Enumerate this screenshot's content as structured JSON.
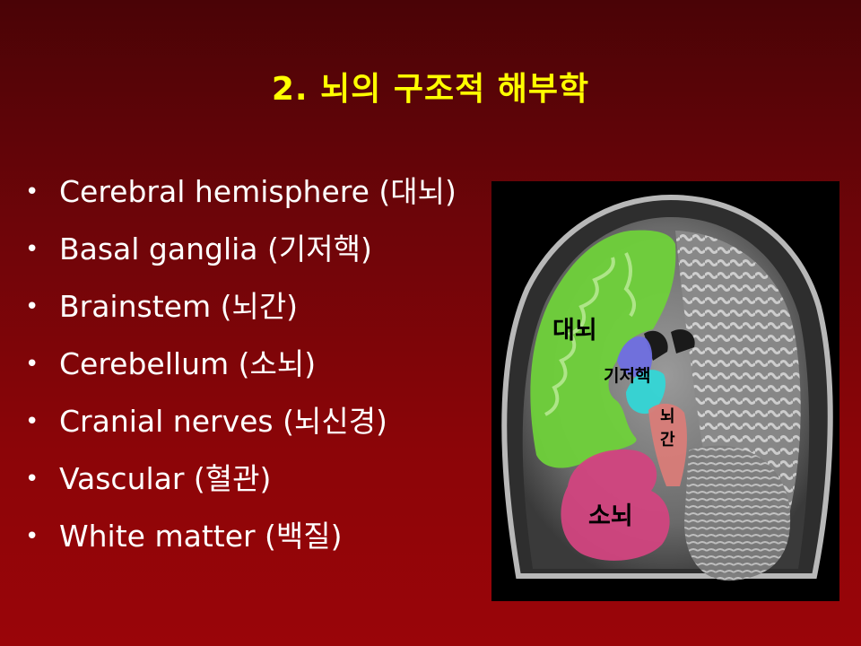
{
  "slide": {
    "title": "2. 뇌의 구조적 해부학",
    "bullets": [
      "Cerebral hemisphere (대뇌)",
      "Basal ganglia (기저핵)",
      "Brainstem (뇌간)",
      "Cerebellum (소뇌)",
      "Cranial nerves (뇌신경)",
      "Vascular (혈관)",
      "White matter (백질)"
    ],
    "bullet_symbol": "•"
  },
  "brain_image": {
    "labels": {
      "cerebrum": "대뇌",
      "basal_ganglia": "기저핵",
      "brainstem_line1": "뇌",
      "brainstem_line2": "간",
      "cerebellum": "소뇌"
    },
    "colors": {
      "cerebrum": "#6fd13a",
      "basal_ganglia_upper": "#6f6fe0",
      "basal_ganglia_lower": "#33d6d6",
      "brainstem": "#d97c78",
      "cerebellum": "#d2457f"
    }
  },
  "colors": {
    "title": "#ffff00",
    "text": "#ffffff"
  }
}
